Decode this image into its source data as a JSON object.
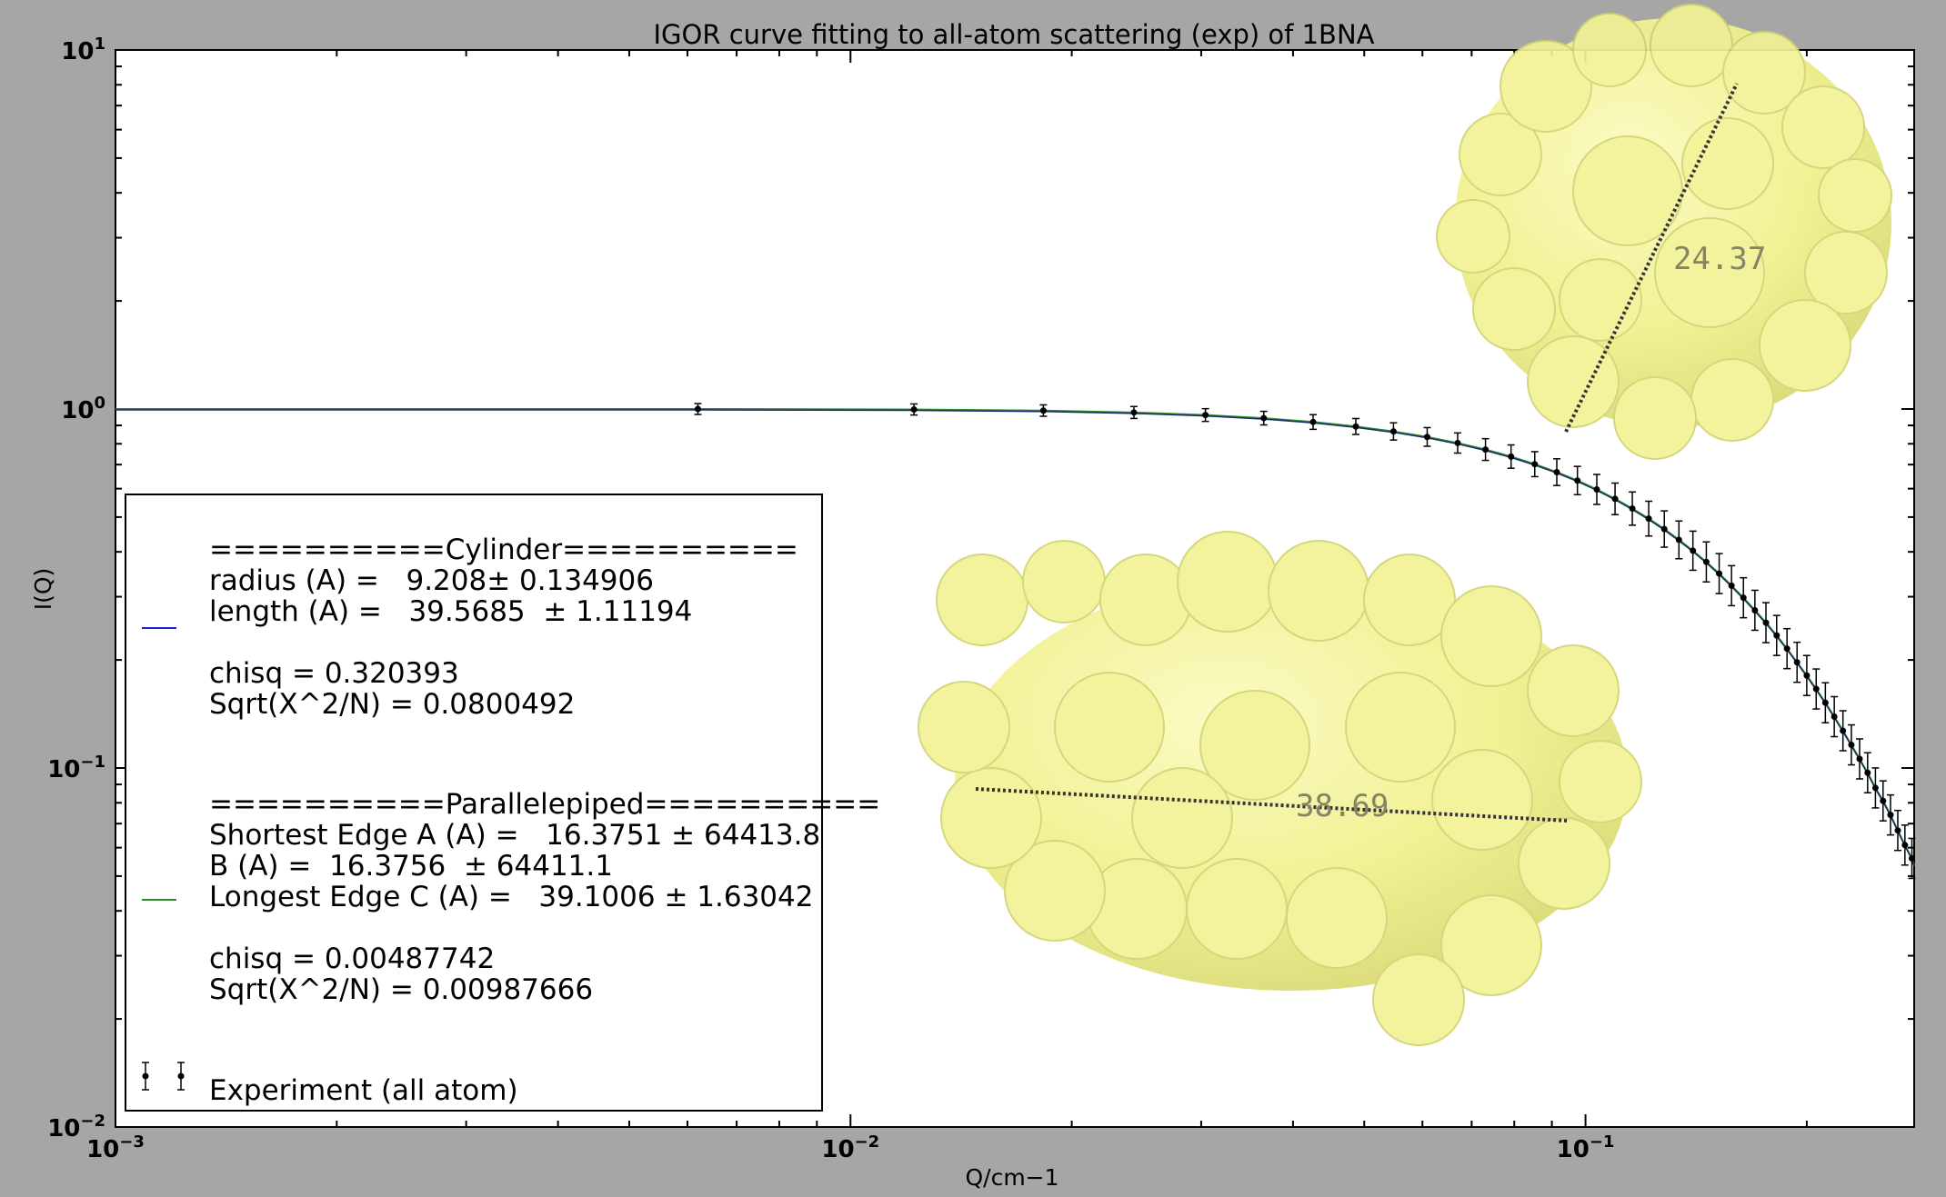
{
  "chart_data": {
    "type": "scatter",
    "title": "IGOR curve fitting to all-atom scattering (exp) of 1BNA",
    "xlabel": "Q/cm−1",
    "ylabel": "I(Q)",
    "xscale": "log",
    "yscale": "log",
    "xlim": [
      0.001,
      0.28
    ],
    "ylim": [
      0.01,
      10
    ],
    "grid": false,
    "xticks": [
      {
        "label_base": "10",
        "label_exp": "−3"
      },
      {
        "label_base": "10",
        "label_exp": "−2"
      },
      {
        "label_base": "10",
        "label_exp": "−1"
      }
    ],
    "yticks": [
      {
        "label_base": "10",
        "label_exp": "−2"
      },
      {
        "label_base": "10",
        "label_exp": "−1"
      },
      {
        "label_base": "10",
        "label_exp": "0"
      },
      {
        "label_base": "10",
        "label_exp": "1"
      }
    ],
    "series": [
      {
        "name": "Experiment (all atom)",
        "kind": "errorbar",
        "color": "#000000",
        "x": [
          0.0062,
          0.0122,
          0.0183,
          0.0243,
          0.0304,
          0.0365,
          0.0426,
          0.0487,
          0.0548,
          0.0609,
          0.067,
          0.0731,
          0.0792,
          0.0853,
          0.0914,
          0.0975,
          0.1036,
          0.1097,
          0.1158,
          0.1219,
          0.128,
          0.134,
          0.14,
          0.146,
          0.152,
          0.158,
          0.164,
          0.17,
          0.176,
          0.182,
          0.188,
          0.194,
          0.2,
          0.206,
          0.212,
          0.218,
          0.224,
          0.23,
          0.236,
          0.242,
          0.248,
          0.254,
          0.26,
          0.266,
          0.272,
          0.278
        ],
        "y": [
          1.0,
          0.997,
          0.99,
          0.978,
          0.962,
          0.943,
          0.92,
          0.894,
          0.866,
          0.836,
          0.804,
          0.771,
          0.737,
          0.702,
          0.667,
          0.632,
          0.597,
          0.562,
          0.528,
          0.495,
          0.463,
          0.432,
          0.403,
          0.375,
          0.348,
          0.322,
          0.298,
          0.275,
          0.254,
          0.234,
          0.215,
          0.197,
          0.181,
          0.166,
          0.152,
          0.139,
          0.127,
          0.116,
          0.106,
          0.097,
          0.088,
          0.081,
          0.074,
          0.067,
          0.061,
          0.056
        ]
      },
      {
        "name": "Cylinder fit",
        "kind": "line",
        "color": "#1f1fd6"
      },
      {
        "name": "Parallelepiped fit",
        "kind": "line",
        "color": "#2e8b2e"
      }
    ],
    "annotations": [
      "24.37",
      "38.69"
    ]
  },
  "legend": {
    "cyl_header": "==========Cylinder==========",
    "cyl_radius": "radius (A) =   9.208± 0.134906",
    "cyl_length": "length (A) =   39.5685  ± 1.11194",
    "cyl_chisq": "chisq = 0.320393",
    "cyl_sqrt": "Sqrt(X^2/N) = 0.0800492",
    "par_header": "==========Parallelepiped==========",
    "par_a": "Shortest Edge A (A) =   16.3751 ± 64413.8",
    "par_b": "B (A) =  16.3756  ± 64411.1",
    "par_c": "Longest Edge C (A) =   39.1006 ± 1.63042",
    "par_chisq": "chisq = 0.00487742",
    "par_sqrt": "Sqrt(X^2/N) = 0.00987666",
    "exp_label": "Experiment (all atom)"
  }
}
